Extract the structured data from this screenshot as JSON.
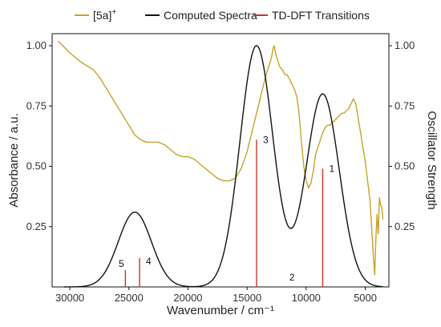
{
  "chart_data": {
    "type": "line",
    "xlabel": "Wavenumber / cm⁻¹",
    "ylabel_left": "Absorbance / a.u.",
    "ylabel_right": "Oscillator Strength",
    "x_reversed": true,
    "xlim": [
      31500,
      3000
    ],
    "ylim": [
      0,
      1.05
    ],
    "x_ticks": [
      30000,
      25000,
      20000,
      15000,
      10000,
      5000
    ],
    "x_tick_labels": [
      "30000",
      "25000",
      "20000",
      "15000",
      "10000",
      "5000"
    ],
    "y_ticks": [
      0.25,
      0.5,
      0.75,
      1.0
    ],
    "y_tick_labels": [
      "0.25",
      "0.50",
      "0.75",
      "1.00"
    ],
    "grid": false,
    "legend_position": "top",
    "series": [
      {
        "name": "[5a]",
        "name_superscript": "+",
        "color": "#c9a227",
        "style": "line",
        "x": [
          31000,
          30000,
          29000,
          28000,
          27500,
          27000,
          26500,
          26000,
          25500,
          25000,
          24500,
          24000,
          23500,
          23000,
          22500,
          22000,
          21500,
          21000,
          20500,
          20000,
          19500,
          19000,
          18500,
          18000,
          17500,
          17000,
          16500,
          16000,
          15500,
          15000,
          14500,
          14000,
          13500,
          13200,
          13000,
          12900,
          12800,
          12700,
          12600,
          12500,
          12400,
          12300,
          12200,
          12000,
          11800,
          11600,
          11400,
          11200,
          11000,
          10800,
          10600,
          10400,
          10200,
          10000,
          9800,
          9600,
          9400,
          9200,
          9000,
          8800,
          8600,
          8400,
          8200,
          8000,
          7800,
          7600,
          7400,
          7200,
          7000,
          6800,
          6600,
          6400,
          6200,
          6000,
          5800,
          5600,
          5400,
          5200,
          5000,
          4900,
          4800,
          4700,
          4600,
          4500,
          4400,
          4300,
          4200,
          4100,
          4000,
          3900,
          3800,
          3700,
          3600,
          3500
        ],
        "y": [
          1.02,
          0.97,
          0.93,
          0.9,
          0.87,
          0.83,
          0.79,
          0.75,
          0.71,
          0.67,
          0.63,
          0.61,
          0.6,
          0.6,
          0.6,
          0.59,
          0.57,
          0.55,
          0.54,
          0.54,
          0.53,
          0.51,
          0.49,
          0.47,
          0.45,
          0.44,
          0.44,
          0.45,
          0.49,
          0.56,
          0.66,
          0.76,
          0.86,
          0.91,
          0.94,
          0.96,
          0.99,
          1.0,
          0.97,
          0.95,
          0.94,
          0.92,
          0.91,
          0.9,
          0.88,
          0.88,
          0.86,
          0.84,
          0.82,
          0.79,
          0.72,
          0.6,
          0.5,
          0.44,
          0.41,
          0.43,
          0.48,
          0.55,
          0.58,
          0.61,
          0.64,
          0.66,
          0.67,
          0.67,
          0.68,
          0.69,
          0.7,
          0.71,
          0.72,
          0.72,
          0.73,
          0.74,
          0.76,
          0.78,
          0.76,
          0.7,
          0.64,
          0.58,
          0.52,
          0.48,
          0.44,
          0.4,
          0.36,
          0.28,
          0.2,
          0.12,
          0.05,
          0.2,
          0.3,
          0.22,
          0.37,
          0.34,
          0.33,
          0.28
        ]
      },
      {
        "name": "Computed Spectra",
        "color": "#111111",
        "style": "gaussian-sum",
        "fwhm": 3300,
        "components": [
          {
            "center": 24500,
            "height": 0.31
          },
          {
            "center": 14200,
            "height": 1.0
          },
          {
            "center": 8600,
            "height": 0.8
          }
        ]
      },
      {
        "name": "TD-DFT Transitions",
        "color": "#c0392b",
        "style": "sticks",
        "sticks": [
          {
            "label": "1",
            "x": 8600,
            "y": 0.49
          },
          {
            "label": "2",
            "x": 11200,
            "y": 0.0
          },
          {
            "label": "3",
            "x": 14200,
            "y": 0.61
          },
          {
            "label": "4",
            "x": 24100,
            "y": 0.12
          },
          {
            "label": "5",
            "x": 25300,
            "y": 0.07
          }
        ]
      }
    ]
  }
}
